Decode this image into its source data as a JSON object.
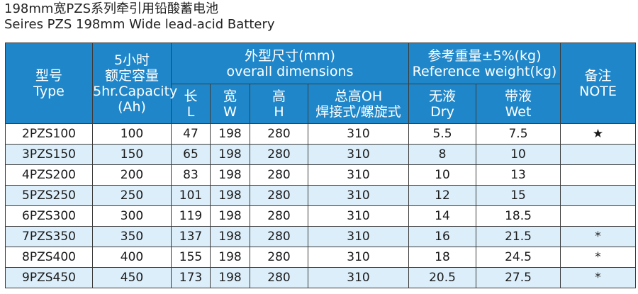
{
  "titles": {
    "cn": "198mm宽PZS系列牵引用铅酸蓄电池",
    "en": "Seires PZS 198mm Wide lead-acid Battery"
  },
  "headers": {
    "type_cn": "型号",
    "type_en": "Type",
    "capacity_cn1": "5小时",
    "capacity_cn2": "额定容量",
    "capacity_en": "5hr.Capacity",
    "capacity_unit": "(Ah)",
    "dims_cn": "外型尺寸(mm)",
    "dims_en": "overall dimensions",
    "weight_cn": "参考重量±5%(kg)",
    "weight_en": "Reference weight(kg)",
    "note_cn": "备注",
    "note_en": "NOTE",
    "len_cn": "长",
    "len_en": "L",
    "wid_cn": "宽",
    "wid_en": "W",
    "hei_cn": "高",
    "hei_en": "H",
    "total_cn1": "总高OH",
    "total_cn2": "焊接式/螺旋式",
    "dry_cn": "无液",
    "dry_en": "Dry",
    "wet_cn": "带液",
    "wet_en": "Wet"
  },
  "colors": {
    "header_bg": "#1f87c9",
    "alt_row_bg": "#dceefa"
  },
  "rows": [
    {
      "type": "2PZS100",
      "capacity": "100",
      "L": "47",
      "W": "198",
      "H": "280",
      "OH": "310",
      "dry": "5.5",
      "wet": "7.5",
      "note": "★"
    },
    {
      "type": "3PZS150",
      "capacity": "150",
      "L": "65",
      "W": "198",
      "H": "280",
      "OH": "310",
      "dry": "8",
      "wet": "10",
      "note": ""
    },
    {
      "type": "4PZS200",
      "capacity": "200",
      "L": "83",
      "W": "198",
      "H": "280",
      "OH": "310",
      "dry": "10",
      "wet": "13",
      "note": ""
    },
    {
      "type": "5PZS250",
      "capacity": "250",
      "L": "101",
      "W": "198",
      "H": "280",
      "OH": "310",
      "dry": "12",
      "wet": "15",
      "note": ""
    },
    {
      "type": "6PZS300",
      "capacity": "300",
      "L": "119",
      "W": "198",
      "H": "280",
      "OH": "310",
      "dry": "14",
      "wet": "18.5",
      "note": ""
    },
    {
      "type": "7PZS350",
      "capacity": "350",
      "L": "137",
      "W": "198",
      "H": "280",
      "OH": "310",
      "dry": "16",
      "wet": "21.5",
      "note": "*"
    },
    {
      "type": "8PZS400",
      "capacity": "400",
      "L": "155",
      "W": "198",
      "H": "280",
      "OH": "310",
      "dry": "18",
      "wet": "24.5",
      "note": "*"
    },
    {
      "type": "9PZS450",
      "capacity": "450",
      "L": "173",
      "W": "198",
      "H": "280",
      "OH": "310",
      "dry": "20.5",
      "wet": "27.5",
      "note": "*"
    }
  ]
}
